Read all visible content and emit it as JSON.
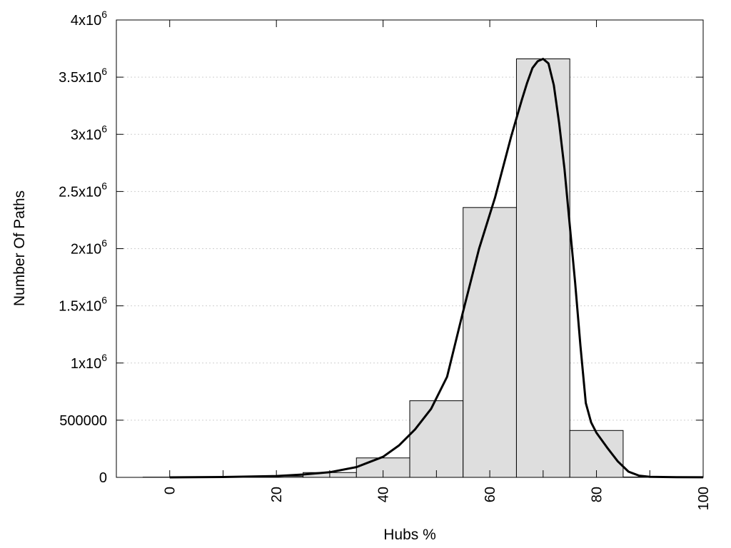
{
  "chart_data": {
    "type": "bar",
    "title": "",
    "xlabel": "Hubs %",
    "ylabel": "Number Of Paths",
    "xlim": [
      -10,
      100
    ],
    "ylim": [
      0,
      4000000
    ],
    "grid": "y-dotted",
    "legend": "none",
    "x_ticks": [
      0,
      20,
      40,
      60,
      80,
      100
    ],
    "x_tick_labels": [
      "0",
      "20",
      "40",
      "60",
      "80",
      "100"
    ],
    "y_ticks": [
      {
        "value": 0,
        "base": "0",
        "exp": ""
      },
      {
        "value": 500000,
        "base": "500000",
        "exp": ""
      },
      {
        "value": 1000000,
        "base": "1x10",
        "exp": "6"
      },
      {
        "value": 1500000,
        "base": "1.5x10",
        "exp": "6"
      },
      {
        "value": 2000000,
        "base": "2x10",
        "exp": "6"
      },
      {
        "value": 2500000,
        "base": "2.5x10",
        "exp": "6"
      },
      {
        "value": 3000000,
        "base": "3x10",
        "exp": "6"
      },
      {
        "value": 3500000,
        "base": "3.5x10",
        "exp": "6"
      },
      {
        "value": 4000000,
        "base": "4x10",
        "exp": "6"
      }
    ],
    "bin_width": 10,
    "bins": [
      {
        "center": 0,
        "value": 2000
      },
      {
        "center": 10,
        "value": 3000
      },
      {
        "center": 20,
        "value": 10000
      },
      {
        "center": 30,
        "value": 42000
      },
      {
        "center": 40,
        "value": 170000
      },
      {
        "center": 50,
        "value": 670000
      },
      {
        "center": 60,
        "value": 2360000
      },
      {
        "center": 70,
        "value": 3660000
      },
      {
        "center": 80,
        "value": 410000
      },
      {
        "center": 90,
        "value": 3000
      }
    ],
    "curve": {
      "x": [
        0,
        10,
        20,
        25,
        30,
        35,
        40,
        43,
        46,
        49,
        52,
        55,
        58,
        61,
        64,
        66,
        67,
        68,
        69,
        70,
        71,
        72,
        73,
        74,
        75,
        76,
        77,
        78,
        79,
        80,
        82,
        84,
        86,
        88,
        90,
        95,
        100
      ],
      "y": [
        0,
        3000,
        12000,
        25000,
        45000,
        90000,
        180000,
        280000,
        420000,
        600000,
        880000,
        1450000,
        2000000,
        2450000,
        2980000,
        3300000,
        3450000,
        3580000,
        3640000,
        3660000,
        3620000,
        3430000,
        3100000,
        2700000,
        2200000,
        1700000,
        1150000,
        650000,
        480000,
        390000,
        260000,
        140000,
        50000,
        15000,
        5000,
        2000,
        500
      ]
    }
  }
}
